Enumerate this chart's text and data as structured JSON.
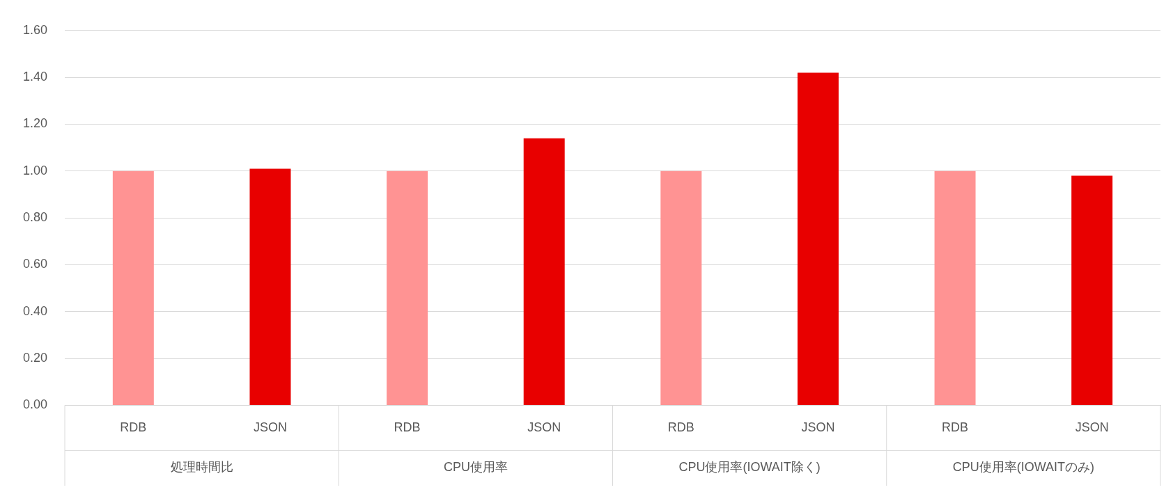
{
  "chart_data": {
    "type": "bar",
    "categories": [
      "RDB",
      "JSON",
      "RDB",
      "JSON",
      "RDB",
      "JSON",
      "RDB",
      "JSON"
    ],
    "values": [
      1.0,
      1.01,
      1.0,
      1.14,
      1.0,
      1.42,
      1.0,
      0.98
    ],
    "colors": [
      "#ff9393",
      "#e80000",
      "#ff9393",
      "#e80000",
      "#ff9393",
      "#e80000",
      "#ff9393",
      "#e80000"
    ],
    "ylim": [
      0,
      1.6
    ],
    "yticks": [
      {
        "value": 0,
        "label": "0.00"
      },
      {
        "value": 0.2,
        "label": "0.20"
      },
      {
        "value": 0.4,
        "label": "0.40"
      },
      {
        "value": 0.6,
        "label": "0.60"
      },
      {
        "value": 0.8,
        "label": "0.80"
      },
      {
        "value": 1,
        "label": "1.00"
      },
      {
        "value": 1.2,
        "label": "1.20"
      },
      {
        "value": 1.4,
        "label": "1.40"
      },
      {
        "value": 1.6,
        "label": "1.60"
      }
    ],
    "grid": "y",
    "legend": false,
    "annotations": [
      "処理時間比",
      "CPU使用率",
      "CPU使用率(IOWAIT除く)",
      "CPU使用率(IOWAITのみ)"
    ]
  }
}
